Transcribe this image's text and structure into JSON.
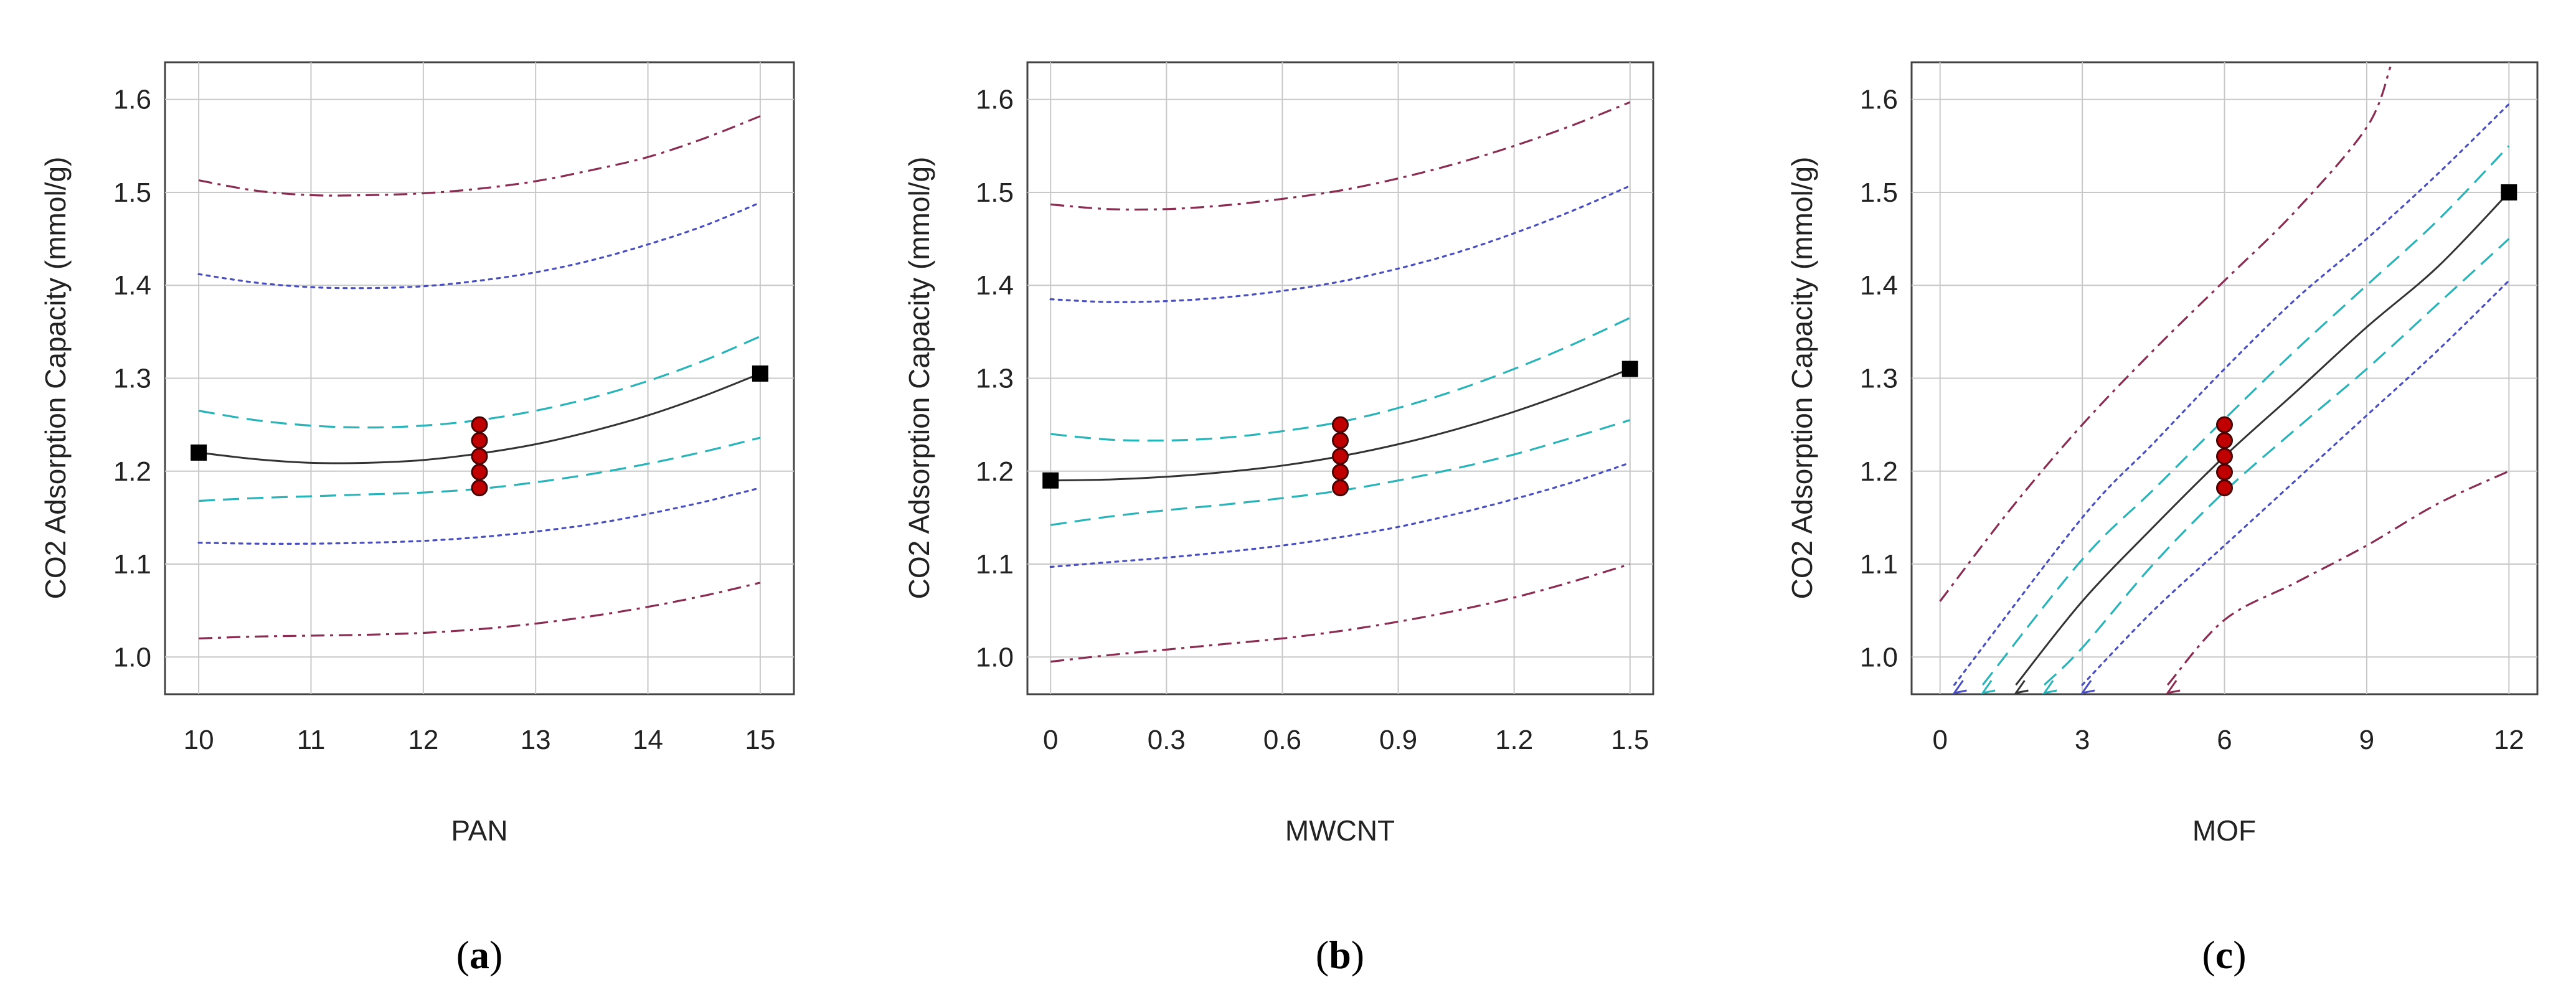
{
  "chart_data": [
    {
      "type": "line",
      "panel_label": "a",
      "xlabel": "PAN",
      "ylabel": "CO2 Adsorption Capacity (mmol/g)",
      "xlim": [
        9.7,
        15.3
      ],
      "ylim": [
        0.96,
        1.64
      ],
      "xticks": [
        10,
        11,
        12,
        13,
        14,
        15
      ],
      "xtick_labels": [
        "10",
        "11",
        "12",
        "13",
        "14",
        "15"
      ],
      "yticks": [
        1.0,
        1.1,
        1.2,
        1.3,
        1.4,
        1.5,
        1.6
      ],
      "ytick_labels": [
        "1.0",
        "1.1",
        "1.2",
        "1.3",
        "1.4",
        "1.5",
        "1.6"
      ],
      "grid": true,
      "x": [
        10,
        10.5,
        11,
        11.5,
        12,
        12.5,
        13,
        13.5,
        14,
        14.5,
        15
      ],
      "series": [
        {
          "name": "prediction",
          "style": "solid",
          "color": "#333333",
          "values": [
            1.22,
            1.213,
            1.209,
            1.209,
            1.212,
            1.219,
            1.229,
            1.243,
            1.26,
            1.281,
            1.305
          ]
        },
        {
          "name": "upper CI",
          "style": "dashed",
          "color": "#2ab3b8",
          "values": [
            1.265,
            1.255,
            1.249,
            1.247,
            1.249,
            1.255,
            1.265,
            1.279,
            1.297,
            1.319,
            1.345
          ]
        },
        {
          "name": "lower CI",
          "style": "dashed",
          "color": "#2ab3b8",
          "values": [
            1.168,
            1.171,
            1.173,
            1.175,
            1.177,
            1.181,
            1.188,
            1.197,
            1.208,
            1.221,
            1.236
          ]
        },
        {
          "name": "upper PI",
          "style": "dotted",
          "color": "#4a4fbf",
          "values": [
            1.412,
            1.403,
            1.398,
            1.397,
            1.399,
            1.405,
            1.414,
            1.427,
            1.444,
            1.464,
            1.489
          ]
        },
        {
          "name": "lower PI",
          "style": "dotted",
          "color": "#4a4fbf",
          "values": [
            1.123,
            1.122,
            1.122,
            1.123,
            1.125,
            1.129,
            1.135,
            1.143,
            1.154,
            1.167,
            1.182
          ]
        },
        {
          "name": "upper TI",
          "style": "dashdot",
          "color": "#8a2d52",
          "values": [
            1.513,
            1.502,
            1.497,
            1.497,
            1.499,
            1.504,
            1.512,
            1.524,
            1.538,
            1.558,
            1.582
          ]
        },
        {
          "name": "lower TI",
          "style": "dashdot",
          "color": "#8a2d52",
          "values": [
            1.02,
            1.022,
            1.023,
            1.024,
            1.026,
            1.03,
            1.036,
            1.044,
            1.054,
            1.066,
            1.08
          ]
        }
      ],
      "end_markers": [
        {
          "x": 10,
          "y": 1.22
        },
        {
          "x": 15,
          "y": 1.305
        }
      ],
      "design_points": [
        {
          "x": 12.5,
          "y": 1.25
        },
        {
          "x": 12.5,
          "y": 1.233
        },
        {
          "x": 12.5,
          "y": 1.216
        },
        {
          "x": 12.5,
          "y": 1.199
        },
        {
          "x": 12.5,
          "y": 1.182
        }
      ]
    },
    {
      "type": "line",
      "panel_label": "b",
      "xlabel": "MWCNT",
      "ylabel": "CO2 Adsorption Capacity (mmol/g)",
      "xlim": [
        -0.06,
        1.56
      ],
      "ylim": [
        0.96,
        1.64
      ],
      "xticks": [
        0,
        0.3,
        0.6,
        0.9,
        1.2,
        1.5
      ],
      "xtick_labels": [
        "0",
        "0.3",
        "0.6",
        "0.9",
        "1.2",
        "1.5"
      ],
      "yticks": [
        1.0,
        1.1,
        1.2,
        1.3,
        1.4,
        1.5,
        1.6
      ],
      "ytick_labels": [
        "1.0",
        "1.1",
        "1.2",
        "1.3",
        "1.4",
        "1.5",
        "1.6"
      ],
      "grid": true,
      "x": [
        0,
        0.15,
        0.3,
        0.45,
        0.6,
        0.75,
        0.9,
        1.05,
        1.2,
        1.35,
        1.5
      ],
      "series": [
        {
          "name": "prediction",
          "style": "solid",
          "color": "#333333",
          "values": [
            1.19,
            1.191,
            1.194,
            1.199,
            1.206,
            1.216,
            1.229,
            1.245,
            1.264,
            1.286,
            1.31
          ]
        },
        {
          "name": "upper CI",
          "style": "dashed",
          "color": "#2ab3b8",
          "values": [
            1.24,
            1.234,
            1.233,
            1.236,
            1.243,
            1.253,
            1.268,
            1.287,
            1.31,
            1.336,
            1.365
          ]
        },
        {
          "name": "lower CI",
          "style": "dashed",
          "color": "#2ab3b8",
          "values": [
            1.142,
            1.151,
            1.158,
            1.164,
            1.171,
            1.179,
            1.19,
            1.203,
            1.218,
            1.236,
            1.255
          ]
        },
        {
          "name": "upper PI",
          "style": "dotted",
          "color": "#4a4fbf",
          "values": [
            1.385,
            1.382,
            1.383,
            1.387,
            1.394,
            1.404,
            1.418,
            1.435,
            1.456,
            1.48,
            1.507
          ]
        },
        {
          "name": "lower PI",
          "style": "dotted",
          "color": "#4a4fbf",
          "values": [
            1.097,
            1.102,
            1.107,
            1.113,
            1.12,
            1.129,
            1.14,
            1.154,
            1.17,
            1.188,
            1.209
          ]
        },
        {
          "name": "upper TI",
          "style": "dashdot",
          "color": "#8a2d52",
          "values": [
            1.487,
            1.482,
            1.482,
            1.486,
            1.493,
            1.502,
            1.515,
            1.531,
            1.55,
            1.572,
            1.597
          ]
        },
        {
          "name": "lower TI",
          "style": "dashdot",
          "color": "#8a2d52",
          "values": [
            0.995,
            1.002,
            1.008,
            1.014,
            1.02,
            1.028,
            1.038,
            1.05,
            1.064,
            1.081,
            1.1
          ]
        }
      ],
      "end_markers": [
        {
          "x": 0,
          "y": 1.19
        },
        {
          "x": 1.5,
          "y": 1.31
        }
      ],
      "design_points": [
        {
          "x": 0.75,
          "y": 1.25
        },
        {
          "x": 0.75,
          "y": 1.233
        },
        {
          "x": 0.75,
          "y": 1.216
        },
        {
          "x": 0.75,
          "y": 1.199
        },
        {
          "x": 0.75,
          "y": 1.182
        }
      ]
    },
    {
      "type": "line",
      "panel_label": "c",
      "xlabel": "MOF",
      "ylabel": "CO2 Adsorption Capacity (mmol/g)",
      "xlim": [
        -0.6,
        12.6
      ],
      "ylim": [
        0.96,
        1.64
      ],
      "xticks": [
        0,
        3,
        6,
        9,
        12
      ],
      "xtick_labels": [
        "0",
        "3",
        "6",
        "9",
        "12"
      ],
      "yticks": [
        1.0,
        1.1,
        1.2,
        1.3,
        1.4,
        1.5,
        1.6
      ],
      "ytick_labels": [
        "1.0",
        "1.1",
        "1.2",
        "1.3",
        "1.4",
        "1.5",
        "1.6"
      ],
      "grid": true,
      "series": [
        {
          "name": "prediction",
          "style": "solid",
          "color": "#333333",
          "x": [
            1.6,
            3,
            4.5,
            6,
            7.5,
            9,
            10.5,
            12
          ],
          "values": [
            0.97,
            1.06,
            1.14,
            1.216,
            1.285,
            1.355,
            1.42,
            1.5
          ]
        },
        {
          "name": "upper CI",
          "style": "dashed",
          "color": "#2ab3b8",
          "x": [
            0.9,
            3,
            4.5,
            6,
            7.5,
            9,
            10.5,
            12
          ],
          "values": [
            0.97,
            1.105,
            1.18,
            1.256,
            1.33,
            1.4,
            1.47,
            1.55
          ]
        },
        {
          "name": "lower CI",
          "style": "dashed",
          "color": "#2ab3b8",
          "x": [
            2.2,
            3,
            4.5,
            6,
            7.5,
            9,
            10.5,
            12
          ],
          "values": [
            0.97,
            1.01,
            1.1,
            1.178,
            1.245,
            1.31,
            1.38,
            1.45
          ]
        },
        {
          "name": "upper PI",
          "style": "dotted",
          "color": "#4a4fbf",
          "x": [
            0.3,
            3,
            4.5,
            6,
            7.5,
            9,
            10.5,
            12
          ],
          "values": [
            0.97,
            1.15,
            1.23,
            1.31,
            1.385,
            1.45,
            1.52,
            1.595
          ]
        },
        {
          "name": "lower PI",
          "style": "dotted",
          "color": "#4a4fbf",
          "x": [
            3,
            4.5,
            6,
            7.5,
            9,
            10.5,
            12
          ],
          "values": [
            0.97,
            1.05,
            1.12,
            1.19,
            1.26,
            1.33,
            1.405
          ]
        },
        {
          "name": "upper TI",
          "style": "dashdot",
          "color": "#8a2d52",
          "x": [
            0,
            1.5,
            3,
            4.5,
            6,
            7.5,
            9,
            9.5
          ],
          "values": [
            1.06,
            1.16,
            1.25,
            1.33,
            1.405,
            1.48,
            1.57,
            1.635
          ]
        },
        {
          "name": "lower TI",
          "style": "dashdot",
          "color": "#8a2d52",
          "x": [
            4.8,
            6,
            7.5,
            9,
            10.5,
            12
          ],
          "values": [
            0.97,
            1.04,
            1.08,
            1.12,
            1.165,
            1.2
          ]
        }
      ],
      "end_markers": [
        {
          "x": 12,
          "y": 1.5
        }
      ],
      "design_points": [
        {
          "x": 6,
          "y": 1.25
        },
        {
          "x": 6,
          "y": 1.233
        },
        {
          "x": 6,
          "y": 1.216
        },
        {
          "x": 6,
          "y": 1.199
        },
        {
          "x": 6,
          "y": 1.182
        }
      ],
      "floor_arrows": [
        {
          "x": 0.3,
          "color": "#4a4fbf"
        },
        {
          "x": 0.9,
          "color": "#2ab3b8"
        },
        {
          "x": 1.6,
          "color": "#333333"
        },
        {
          "x": 2.2,
          "color": "#2ab3b8"
        },
        {
          "x": 3,
          "color": "#4a4fbf"
        },
        {
          "x": 4.8,
          "color": "#8a2d52"
        }
      ]
    }
  ]
}
